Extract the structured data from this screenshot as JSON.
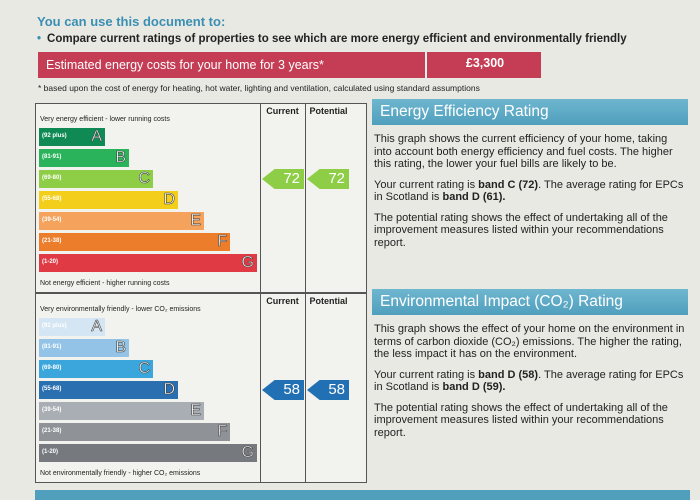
{
  "header": {
    "intro": "You can use this document to:",
    "bullet": "Compare current ratings of properties to see which are more energy efficient and environmentally friendly"
  },
  "cost": {
    "label": "Estimated energy costs for your home for 3 years*",
    "value": "£3,300",
    "footnote": "* based upon the cost of energy for heating, hot water, lighting and ventilation, calculated using standard assumptions"
  },
  "ratings": [
    {
      "top_label": "Very energy efficient - lower running costs",
      "bottom_label": "Not energy efficient - higher running costs",
      "current_header": "Current",
      "potential_header": "Potential",
      "current": 72,
      "potential": 72,
      "arrow_color": "#8dce46",
      "bands": [
        {
          "range": "(92 plus)",
          "letter": "A",
          "color": "#0f8a55"
        },
        {
          "range": "(81-91)",
          "letter": "B",
          "color": "#2bb35c"
        },
        {
          "range": "(69-80)",
          "letter": "C",
          "color": "#8dce46"
        },
        {
          "range": "(55-68)",
          "letter": "D",
          "color": "#f3cf1c"
        },
        {
          "range": "(39-54)",
          "letter": "E",
          "color": "#f5a25c"
        },
        {
          "range": "(21-38)",
          "letter": "F",
          "color": "#ec7d2a"
        },
        {
          "range": "(1-20)",
          "letter": "G",
          "color": "#e03a45"
        }
      ],
      "title": "Energy Efficiency Rating",
      "paragraphs": [
        [
          {
            "text": "This graph shows the current efficiency of your home, taking into account both energy efficiency and fuel costs. The higher this rating, the lower your fuel bills are likely to be."
          }
        ],
        [
          {
            "text": "Your current rating is "
          },
          {
            "text": "band C (72)",
            "bold": true
          },
          {
            "text": ". The average rating for EPCs in Scotland is "
          },
          {
            "text": "band D (61).",
            "bold": true
          }
        ],
        [
          {
            "text": "The potential rating shows the effect of undertaking all of the improvement measures listed within your recommendations report."
          }
        ]
      ]
    },
    {
      "top_label": "Very environmentally friendly - lower CO₂ emissions",
      "bottom_label": "Not environmentally friendly - higher CO₂ emissions",
      "current_header": "Current",
      "potential_header": "Potential",
      "current": 58,
      "potential": 58,
      "arrow_color": "#2270b4",
      "bands": [
        {
          "range": "(92 plus)",
          "letter": "A",
          "color": "#d4e6f3"
        },
        {
          "range": "(81-91)",
          "letter": "B",
          "color": "#93c3e6"
        },
        {
          "range": "(69-80)",
          "letter": "C",
          "color": "#3aa6dc"
        },
        {
          "range": "(55-68)",
          "letter": "D",
          "color": "#2a6fb0"
        },
        {
          "range": "(39-54)",
          "letter": "E",
          "color": "#a9aeb4"
        },
        {
          "range": "(21-38)",
          "letter": "F",
          "color": "#8f9398"
        },
        {
          "range": "(1-20)",
          "letter": "G",
          "color": "#767a7f"
        }
      ],
      "title": "Environmental Impact (CO₂) Rating",
      "paragraphs": [
        [
          {
            "text": "This graph shows the effect of your home on the environment in terms of carbon dioxide (CO₂) emissions. The higher the rating, the less impact it has on the environment."
          }
        ],
        [
          {
            "text": "Your current rating is "
          },
          {
            "text": "band D (58)",
            "bold": true
          },
          {
            "text": ". The average rating for EPCs in Scotland is "
          },
          {
            "text": "band D (59).",
            "bold": true
          }
        ],
        [
          {
            "text": "The potential rating shows the effect of undertaking all of the improvement measures listed within your recommendations report."
          }
        ]
      ]
    }
  ]
}
